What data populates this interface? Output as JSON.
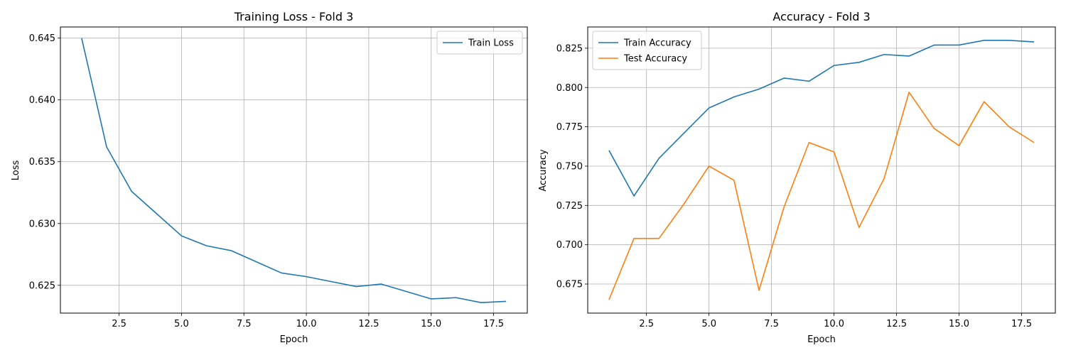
{
  "chart_data": [
    {
      "type": "line",
      "title": "Training Loss - Fold 3",
      "xlabel": "Epoch",
      "ylabel": "Loss",
      "xlim": [
        0.15,
        18.85
      ],
      "ylim": [
        0.62275,
        0.6459
      ],
      "xticks": [
        2.5,
        5.0,
        7.5,
        10.0,
        12.5,
        15.0,
        17.5
      ],
      "xtick_labels": [
        "2.5",
        "5.0",
        "7.5",
        "10.0",
        "12.5",
        "15.0",
        "17.5"
      ],
      "yticks": [
        0.625,
        0.63,
        0.635,
        0.64,
        0.645
      ],
      "ytick_labels": [
        "0.625",
        "0.630",
        "0.635",
        "0.640",
        "0.645"
      ],
      "grid": true,
      "legend": "upper right",
      "x": [
        1,
        2,
        3,
        4,
        5,
        6,
        7,
        8,
        9,
        10,
        11,
        12,
        13,
        14,
        15,
        16,
        17,
        18
      ],
      "series": [
        {
          "name": "Train Loss",
          "color": "#1f77b4",
          "values": [
            0.645,
            0.6362,
            0.6326,
            0.6308,
            0.629,
            0.6282,
            0.6278,
            0.6269,
            0.626,
            0.6257,
            0.6253,
            0.6249,
            0.6251,
            0.6245,
            0.6239,
            0.624,
            0.6236,
            0.6237
          ]
        }
      ]
    },
    {
      "type": "line",
      "title": "Accuracy - Fold 3",
      "xlabel": "Epoch",
      "ylabel": "Accuracy",
      "xlim": [
        0.15,
        18.85
      ],
      "ylim": [
        0.6565,
        0.8385
      ],
      "xticks": [
        2.5,
        5.0,
        7.5,
        10.0,
        12.5,
        15.0,
        17.5
      ],
      "xtick_labels": [
        "2.5",
        "5.0",
        "7.5",
        "10.0",
        "12.5",
        "15.0",
        "17.5"
      ],
      "yticks": [
        0.675,
        0.7,
        0.725,
        0.75,
        0.775,
        0.8,
        0.825
      ],
      "ytick_labels": [
        "0.675",
        "0.700",
        "0.725",
        "0.750",
        "0.775",
        "0.800",
        "0.825"
      ],
      "grid": true,
      "legend": "upper left",
      "x": [
        1,
        2,
        3,
        4,
        5,
        6,
        7,
        8,
        9,
        10,
        11,
        12,
        13,
        14,
        15,
        16,
        17,
        18
      ],
      "series": [
        {
          "name": "Train Accuracy",
          "color": "#1f77b4",
          "values": [
            0.76,
            0.731,
            0.755,
            0.771,
            0.787,
            0.794,
            0.799,
            0.806,
            0.804,
            0.814,
            0.816,
            0.821,
            0.82,
            0.827,
            0.827,
            0.83,
            0.83,
            0.829
          ]
        },
        {
          "name": "Test Accuracy",
          "color": "#ff7f0e",
          "values": [
            0.665,
            0.704,
            0.704,
            0.726,
            0.75,
            0.741,
            0.671,
            0.724,
            0.765,
            0.759,
            0.711,
            0.742,
            0.797,
            0.774,
            0.763,
            0.791,
            0.775,
            0.765
          ]
        }
      ]
    }
  ]
}
